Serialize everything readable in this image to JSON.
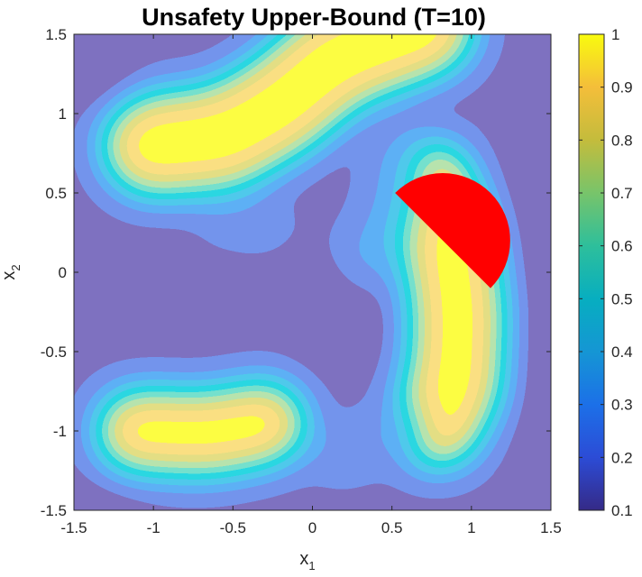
{
  "chart_data": {
    "type": "contour",
    "title": "Unsafety Upper-Bound (T=10)",
    "xlabel": {
      "base": "x",
      "sub": "1"
    },
    "ylabel": {
      "base": "x",
      "sub": "2"
    },
    "xlim": [
      -1.5,
      1.5
    ],
    "ylim": [
      -1.5,
      1.5
    ],
    "xticks": [
      -1.5,
      -1,
      -0.5,
      0,
      0.5,
      1,
      1.5
    ],
    "xtick_labels": [
      "-1.5",
      "-1",
      "-0.5",
      "0",
      "0.5",
      "1",
      "1.5"
    ],
    "yticks": [
      -1.5,
      -1,
      -0.5,
      0,
      0.5,
      1,
      1.5
    ],
    "ytick_labels": [
      "-1.5",
      "-1",
      "-0.5",
      "0",
      "0.5",
      "1",
      "1.5"
    ],
    "colorbar": {
      "range": [
        0.1,
        1
      ],
      "ticks": [
        0.1,
        0.2,
        0.3,
        0.4,
        0.5,
        0.6,
        0.7,
        0.8,
        0.9,
        1
      ],
      "tick_labels": [
        "0.1",
        "0.2",
        "0.3",
        "0.4",
        "0.5",
        "0.6",
        "0.7",
        "0.8",
        "0.9",
        "1"
      ],
      "colormap": "parula"
    },
    "levels": [
      {
        "value": 0.1,
        "color": "#352a87"
      },
      {
        "value": 0.2,
        "color": "#2c4cd6"
      },
      {
        "value": 0.3,
        "color": "#1c70e8"
      },
      {
        "value": 0.4,
        "color": "#1596d4"
      },
      {
        "value": 0.5,
        "color": "#07aec0"
      },
      {
        "value": 0.6,
        "color": "#2ebf9b"
      },
      {
        "value": 0.7,
        "color": "#78c46a"
      },
      {
        "value": 0.8,
        "color": "#c4bc3c"
      },
      {
        "value": 0.9,
        "color": "#f4be3a"
      },
      {
        "value": 1.0,
        "color": "#f9fb0e"
      }
    ],
    "unsafe_region": {
      "shape": "half-disk",
      "center": [
        0.82,
        0.2
      ],
      "radius": 0.42,
      "cut_endpoints": [
        [
          0.52,
          0.5
        ],
        [
          1.12,
          -0.1
        ]
      ],
      "color": "#ff0000"
    },
    "high_regions": [
      "upper-left arm from (-1.0, 0.9) to (0.7, 1.5)",
      "lower-left lobe around (-0.7, -1.0)",
      "right arm around (0.85, -0.3) to (0.7, 0.6)"
    ],
    "low_region": "center around (0.0, -0.1)"
  }
}
